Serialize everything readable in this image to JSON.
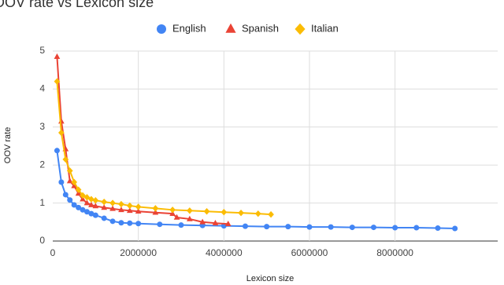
{
  "chart_data": {
    "type": "line",
    "title": "OOV rate vs Lexicon size",
    "x_label": "Lexicon size",
    "y_label": "OOV rate",
    "xlim": [
      0,
      10400000
    ],
    "xticks": [
      0,
      2000000,
      4000000,
      6000000,
      8000000
    ],
    "ylim": [
      0,
      5
    ],
    "yticks": [
      0,
      1,
      2,
      3,
      4,
      5
    ],
    "grid": true,
    "legend": "top",
    "series": [
      {
        "name": "English",
        "color": "#4285f4",
        "marker": "circle",
        "x": [
          100000,
          200000,
          300000,
          400000,
          500000,
          600000,
          700000,
          800000,
          900000,
          1000000,
          1200000,
          1400000,
          1600000,
          1800000,
          2000000,
          2500000,
          3000000,
          3500000,
          4000000,
          4500000,
          5000000,
          5500000,
          6000000,
          6500000,
          7000000,
          7500000,
          8000000,
          8500000,
          9000000,
          9400000
        ],
        "values": [
          2.38,
          1.55,
          1.22,
          1.08,
          0.95,
          0.88,
          0.82,
          0.77,
          0.72,
          0.68,
          0.6,
          0.52,
          0.48,
          0.47,
          0.46,
          0.44,
          0.42,
          0.41,
          0.4,
          0.39,
          0.38,
          0.38,
          0.37,
          0.37,
          0.36,
          0.36,
          0.35,
          0.35,
          0.34,
          0.33
        ]
      },
      {
        "name": "Spanish",
        "color": "#ea4335",
        "marker": "triangle",
        "x": [
          100000,
          200000,
          300000,
          400000,
          500000,
          600000,
          700000,
          800000,
          900000,
          1000000,
          1200000,
          1400000,
          1600000,
          1800000,
          2000000,
          2400000,
          2800000,
          2900000,
          3200000,
          3500000,
          3800000,
          4100000
        ],
        "values": [
          4.85,
          3.15,
          2.42,
          1.58,
          1.45,
          1.25,
          1.1,
          1.0,
          0.95,
          0.92,
          0.88,
          0.85,
          0.82,
          0.8,
          0.78,
          0.75,
          0.72,
          0.62,
          0.58,
          0.5,
          0.47,
          0.45
        ]
      },
      {
        "name": "Italian",
        "color": "#fbbc04",
        "marker": "diamond",
        "x": [
          100000,
          200000,
          300000,
          400000,
          500000,
          600000,
          700000,
          800000,
          900000,
          1000000,
          1200000,
          1400000,
          1600000,
          1800000,
          2000000,
          2400000,
          2800000,
          3200000,
          3600000,
          4000000,
          4400000,
          4800000,
          5100000
        ],
        "values": [
          4.2,
          2.85,
          2.15,
          1.85,
          1.55,
          1.35,
          1.2,
          1.15,
          1.1,
          1.07,
          1.03,
          1.0,
          0.97,
          0.93,
          0.9,
          0.86,
          0.82,
          0.8,
          0.78,
          0.76,
          0.74,
          0.72,
          0.7
        ]
      }
    ]
  }
}
